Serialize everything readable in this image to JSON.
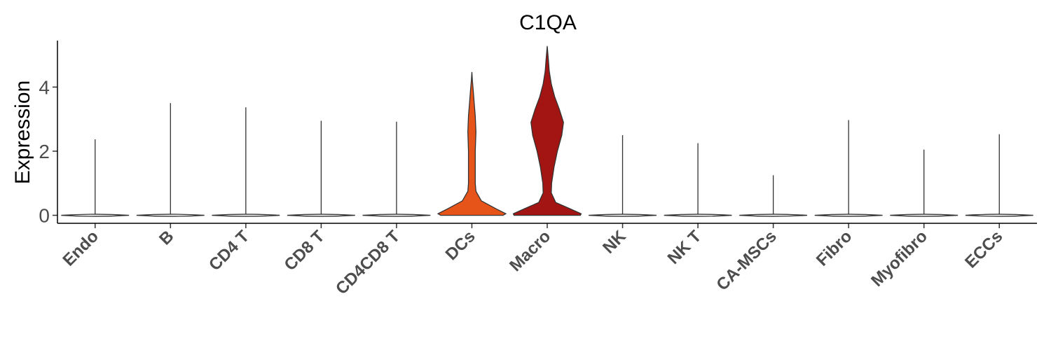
{
  "chart_data": {
    "type": "violin",
    "title": "C1QA",
    "xlabel": "",
    "ylabel": "Expression",
    "ylim": [
      -0.25,
      5.45
    ],
    "yticks": [
      0,
      2,
      4
    ],
    "grid": false,
    "legend": "none",
    "categories": [
      "Endo",
      "B",
      "CD4 T",
      "CD8 T",
      "CD4CD8 T",
      "DCs",
      "Macro",
      "NK",
      "NK T",
      "CA-MSCs",
      "Fibro",
      "Myofibro",
      "ECCs"
    ],
    "max_values": [
      2.37,
      3.5,
      3.37,
      2.95,
      2.92,
      4.47,
      5.28,
      2.5,
      2.25,
      1.25,
      2.97,
      2.05,
      2.53
    ],
    "colors": {
      "DCs": "#e6541a",
      "Macro": "#a31513",
      "default": "#ffffff"
    },
    "density": {
      "DCs": [
        [
          0,
          0.92
        ],
        [
          0.05,
          1.0
        ],
        [
          0.2,
          0.72
        ],
        [
          0.45,
          0.28
        ],
        [
          0.75,
          0.12
        ],
        [
          1.0,
          0.1
        ],
        [
          1.5,
          0.1
        ],
        [
          2.0,
          0.1
        ],
        [
          2.6,
          0.12
        ],
        [
          3.1,
          0.1
        ],
        [
          3.5,
          0.07
        ],
        [
          3.9,
          0.04
        ],
        [
          4.2,
          0.015
        ],
        [
          4.47,
          0
        ]
      ],
      "Macro": [
        [
          0,
          0.98
        ],
        [
          0.05,
          1.0
        ],
        [
          0.2,
          0.68
        ],
        [
          0.4,
          0.25
        ],
        [
          0.7,
          0.12
        ],
        [
          1.0,
          0.13
        ],
        [
          1.5,
          0.2
        ],
        [
          2.0,
          0.3
        ],
        [
          2.5,
          0.43
        ],
        [
          2.9,
          0.48
        ],
        [
          3.3,
          0.36
        ],
        [
          3.7,
          0.22
        ],
        [
          4.1,
          0.12
        ],
        [
          4.5,
          0.06
        ],
        [
          4.9,
          0.03
        ],
        [
          5.28,
          0
        ]
      ]
    }
  }
}
